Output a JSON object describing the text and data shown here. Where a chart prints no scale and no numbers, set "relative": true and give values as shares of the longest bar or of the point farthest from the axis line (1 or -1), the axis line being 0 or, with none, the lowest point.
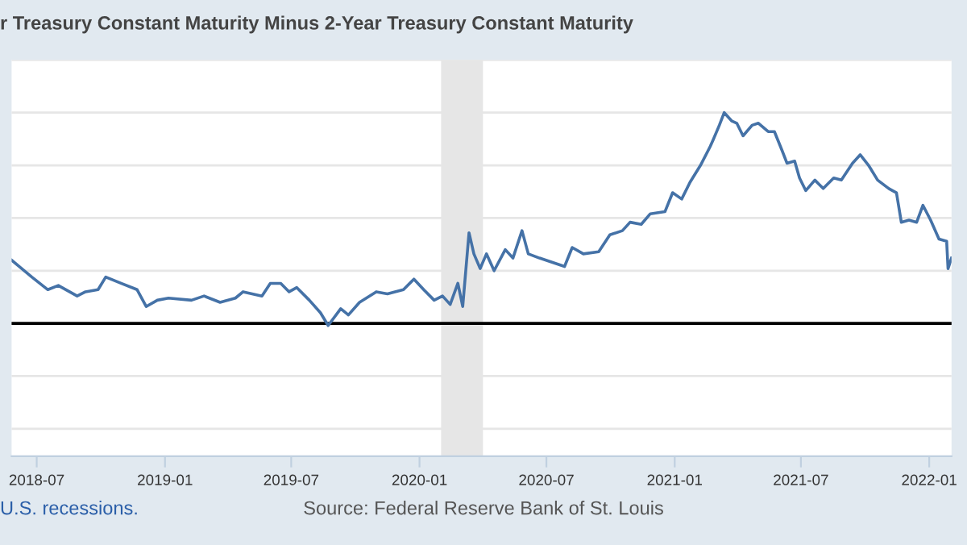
{
  "chart_data": {
    "type": "line",
    "relative": true,
    "title": "r Treasury Constant Maturity Minus 2-Year Treasury Constant Maturity",
    "annotations": [
      "U.S. recessions.",
      "Source: Federal Reserve Bank of St. Louis"
    ],
    "xlim": [
      "2018-05-26",
      "2022-02-02"
    ],
    "xticks": [
      "2018-07",
      "2019-01",
      "2019-07",
      "2020-01",
      "2020-07",
      "2021-01",
      "2021-07",
      "2022-01"
    ],
    "grid": "y",
    "legend": false,
    "marker": "none",
    "line_style": "solid",
    "bands": [
      {
        "axis": "x",
        "from": "2020-02-01",
        "to": "2020-04-01",
        "color": "#e6e6e6"
      }
    ],
    "series": [
      {
        "color": "#4572a7",
        "x": [
          "2018-05-26",
          "2018-06-06",
          "2018-06-24",
          "2018-07-17",
          "2018-08-01",
          "2018-08-28",
          "2018-09-09",
          "2018-09-27",
          "2018-10-08",
          "2018-10-30",
          "2018-11-22",
          "2018-12-05",
          "2018-12-21",
          "2019-01-06",
          "2019-02-08",
          "2019-02-26",
          "2019-03-21",
          "2019-04-12",
          "2019-04-23",
          "2019-05-20",
          "2019-06-01",
          "2019-06-16",
          "2019-06-28",
          "2019-07-09",
          "2019-07-27",
          "2019-08-12",
          "2019-08-23",
          "2019-09-10",
          "2019-09-21",
          "2019-10-07",
          "2019-10-31",
          "2019-11-16",
          "2019-12-09",
          "2019-12-24",
          "2020-01-07",
          "2020-01-22",
          "2020-02-03",
          "2020-02-14",
          "2020-02-25",
          "2020-03-03",
          "2020-03-12",
          "2020-03-19",
          "2020-03-28",
          "2020-04-06",
          "2020-04-17",
          "2020-05-03",
          "2020-05-14",
          "2020-05-27",
          "2020-06-05",
          "2020-06-21",
          "2020-07-09",
          "2020-07-27",
          "2020-08-07",
          "2020-08-23",
          "2020-09-14",
          "2020-09-30",
          "2020-10-18",
          "2020-10-29",
          "2020-11-14",
          "2020-11-27",
          "2020-12-18",
          "2020-12-29",
          "2021-01-11",
          "2021-01-23",
          "2021-02-07",
          "2021-02-21",
          "2021-02-25",
          "2021-03-06",
          "2021-03-13",
          "2021-03-24",
          "2021-03-31",
          "2021-04-09",
          "2021-04-22",
          "2021-05-01",
          "2021-05-15",
          "2021-05-24",
          "2021-06-04",
          "2021-06-11",
          "2021-06-22",
          "2021-06-29",
          "2021-07-08",
          "2021-07-21",
          "2021-08-02",
          "2021-08-17",
          "2021-08-28",
          "2021-09-13",
          "2021-09-24",
          "2021-10-06",
          "2021-10-19",
          "2021-11-04",
          "2021-11-15",
          "2021-11-22",
          "2021-12-03",
          "2021-12-14",
          "2021-12-23",
          "2022-01-03",
          "2022-01-15",
          "2022-01-26",
          "2022-01-28",
          "2022-02-02"
        ],
        "values": [
          0.3,
          0.27,
          0.22,
          0.16,
          0.18,
          0.13,
          0.15,
          0.16,
          0.22,
          0.19,
          0.16,
          0.08,
          0.11,
          0.12,
          0.11,
          0.13,
          0.1,
          0.12,
          0.15,
          0.13,
          0.19,
          0.19,
          0.15,
          0.17,
          0.11,
          0.05,
          -0.01,
          0.07,
          0.04,
          0.1,
          0.15,
          0.14,
          0.16,
          0.21,
          0.16,
          0.11,
          0.13,
          0.09,
          0.19,
          0.08,
          0.43,
          0.33,
          0.26,
          0.33,
          0.25,
          0.35,
          0.31,
          0.44,
          0.33,
          0.31,
          0.29,
          0.27,
          0.36,
          0.33,
          0.34,
          0.42,
          0.44,
          0.48,
          0.47,
          0.52,
          0.53,
          0.62,
          0.59,
          0.67,
          0.75,
          0.84,
          0.87,
          0.94,
          1.0,
          0.96,
          0.95,
          0.89,
          0.94,
          0.95,
          0.91,
          0.91,
          0.82,
          0.76,
          0.77,
          0.69,
          0.63,
          0.68,
          0.64,
          0.69,
          0.68,
          0.76,
          0.8,
          0.75,
          0.68,
          0.64,
          0.62,
          0.48,
          0.49,
          0.48,
          0.56,
          0.49,
          0.4,
          0.39,
          0.26,
          0.31
        ]
      }
    ]
  }
}
